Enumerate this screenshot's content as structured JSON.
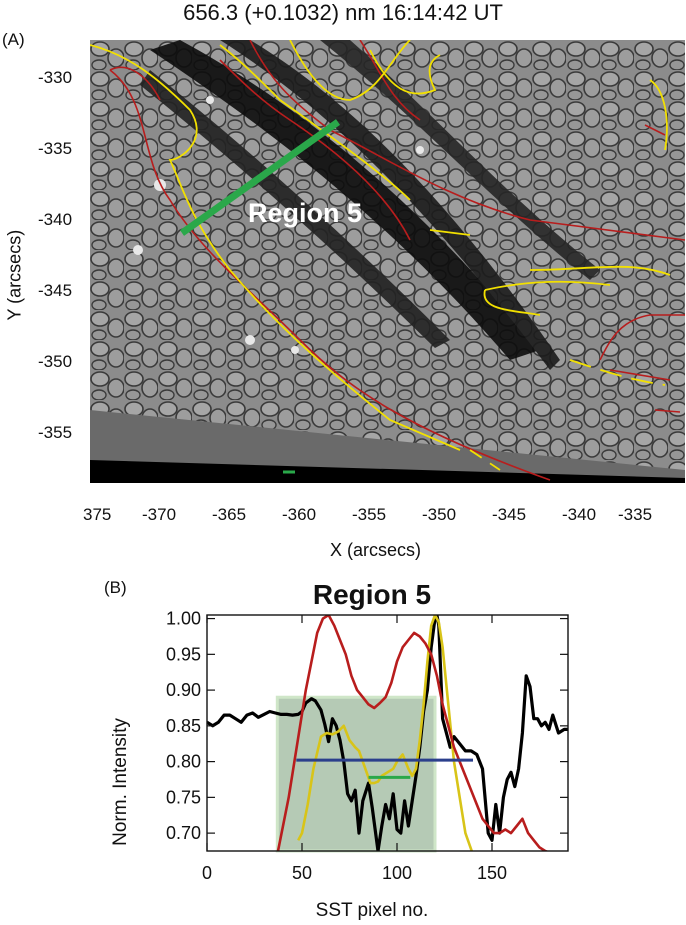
{
  "header": {
    "title": "656.3 (+0.1032) nm   16:14:42 UT"
  },
  "panelA": {
    "label": "(A)",
    "xlabel": "X (arcsecs)",
    "ylabel": "Y (arcsecs)",
    "xticks": [
      "375",
      "-370",
      "-365",
      "-360",
      "-355",
      "-350",
      "-345",
      "-340",
      "-335"
    ],
    "yticks": [
      "-330",
      "-335",
      "-340",
      "-345",
      "-350",
      "-355"
    ],
    "region_label": "Region 5",
    "colors": {
      "contour_red": "#b81d1d",
      "contour_yellow": "#f2e000",
      "cut": "#2aa84a"
    }
  },
  "panelB": {
    "label": "(B)"
  },
  "chart_data": {
    "type": "line",
    "title": "Region 5",
    "xlabel": "SST pixel no.",
    "ylabel": "Norm. Intensity",
    "xlim": [
      0,
      190
    ],
    "ylim": [
      0.675,
      1.005
    ],
    "xticks": [
      0,
      50,
      100,
      150
    ],
    "yticks": [
      0.7,
      0.75,
      0.8,
      0.85,
      0.9,
      0.95,
      1.0
    ],
    "shaded_region": {
      "x": [
        37,
        120
      ],
      "y": [
        0.675,
        0.89
      ],
      "color": "#9cb89c"
    },
    "hlines": [
      {
        "color": "#2b3f8c",
        "x": [
          47,
          140
        ],
        "y": 0.802
      },
      {
        "color": "#2aa84a",
        "x": [
          85,
          107
        ],
        "y": 0.778
      }
    ],
    "series": [
      {
        "color": "#000000",
        "x": [
          0,
          3,
          6,
          9,
          12,
          15,
          18,
          21,
          24,
          27,
          30,
          33,
          36,
          39,
          42,
          45,
          48,
          50,
          52,
          55,
          57,
          60,
          62,
          64,
          66,
          68,
          70,
          72,
          74,
          76,
          78,
          80,
          82,
          85,
          87,
          90,
          92,
          94,
          96,
          98,
          100,
          102,
          104,
          106,
          108,
          110,
          112,
          114,
          116,
          118,
          120,
          121,
          122,
          124,
          126,
          128,
          130,
          133,
          136,
          139,
          142,
          145,
          148,
          150,
          152,
          154,
          156,
          158,
          160,
          162,
          164,
          166,
          168,
          170,
          172,
          174,
          176,
          178,
          180,
          182,
          185,
          188,
          190
        ],
        "y": [
          0.855,
          0.85,
          0.855,
          0.865,
          0.865,
          0.86,
          0.855,
          0.865,
          0.868,
          0.862,
          0.866,
          0.87,
          0.868,
          0.866,
          0.866,
          0.865,
          0.866,
          0.87,
          0.882,
          0.888,
          0.885,
          0.872,
          0.852,
          0.828,
          0.86,
          0.85,
          0.83,
          0.8,
          0.755,
          0.745,
          0.76,
          0.7,
          0.745,
          0.77,
          0.735,
          0.675,
          0.71,
          0.74,
          0.72,
          0.755,
          0.705,
          0.7,
          0.745,
          0.71,
          0.745,
          0.78,
          0.82,
          0.87,
          0.9,
          0.96,
          1.0,
          1.005,
          0.99,
          0.86,
          0.84,
          0.82,
          0.835,
          0.825,
          0.815,
          0.815,
          0.81,
          0.79,
          0.7,
          0.69,
          0.74,
          0.7,
          0.75,
          0.775,
          0.785,
          0.765,
          0.79,
          0.84,
          0.92,
          0.905,
          0.86,
          0.86,
          0.85,
          0.855,
          0.845,
          0.865,
          0.84,
          0.845,
          0.845
        ]
      },
      {
        "color": "#d8c418",
        "x": [
          48,
          50,
          53,
          56,
          60,
          63,
          66,
          69,
          72,
          75,
          78,
          80,
          82,
          84,
          86,
          88,
          90,
          92,
          95,
          98,
          100,
          103,
          106,
          108,
          110,
          112,
          114,
          116,
          118,
          120,
          122,
          124,
          127,
          130,
          133,
          136,
          140
        ],
        "y": [
          0.69,
          0.7,
          0.74,
          0.79,
          0.835,
          0.84,
          0.838,
          0.842,
          0.85,
          0.83,
          0.82,
          0.815,
          0.8,
          0.785,
          0.77,
          0.77,
          0.772,
          0.78,
          0.785,
          0.79,
          0.8,
          0.81,
          0.79,
          0.78,
          0.79,
          0.83,
          0.88,
          0.94,
          0.99,
          1.005,
          0.995,
          0.96,
          0.88,
          0.8,
          0.75,
          0.7,
          0.67
        ]
      },
      {
        "color": "#b81d1d",
        "x": [
          37,
          40,
          43,
          46,
          49,
          52,
          55,
          58,
          61,
          64,
          67,
          70,
          73,
          76,
          79,
          82,
          85,
          88,
          91,
          94,
          97,
          100,
          103,
          106,
          109,
          112,
          115,
          118,
          121,
          124,
          127,
          130,
          133,
          136,
          139,
          142,
          145,
          148,
          151,
          154,
          157,
          160,
          163,
          166,
          169,
          172,
          175,
          178,
          181,
          184,
          187,
          190
        ],
        "y": [
          0.67,
          0.71,
          0.75,
          0.8,
          0.85,
          0.9,
          0.94,
          0.98,
          1.0,
          1.005,
          0.99,
          0.97,
          0.95,
          0.92,
          0.9,
          0.89,
          0.88,
          0.875,
          0.882,
          0.89,
          0.91,
          0.94,
          0.96,
          0.97,
          0.98,
          0.975,
          0.965,
          0.95,
          0.92,
          0.88,
          0.85,
          0.82,
          0.8,
          0.78,
          0.76,
          0.74,
          0.72,
          0.71,
          0.7,
          0.7,
          0.705,
          0.7,
          0.71,
          0.72,
          0.7,
          0.69,
          0.68,
          0.675,
          0.672,
          0.67,
          0.668,
          0.665
        ]
      }
    ]
  }
}
